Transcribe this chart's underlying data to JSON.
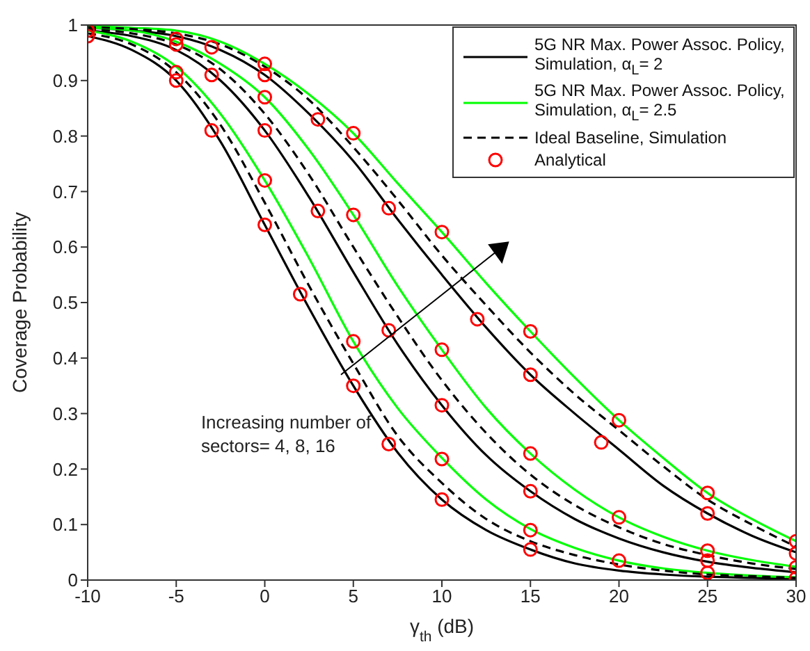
{
  "chart_data": {
    "type": "line",
    "xlabel": "γ$_{th}$ (dB)",
    "ylabel": "Coverage Probability",
    "x": [
      -10,
      -7.5,
      -5,
      -2.5,
      0,
      2.5,
      5,
      7.5,
      10,
      12.5,
      15,
      17.5,
      20,
      22.5,
      25,
      27.5,
      30
    ],
    "xlim": [
      -10,
      30
    ],
    "xticks": [
      -10,
      -5,
      0,
      5,
      10,
      15,
      20,
      25,
      30
    ],
    "ylim": [
      0,
      1
    ],
    "yticks": [
      0,
      0.1,
      0.2,
      0.3,
      0.4,
      0.5,
      0.6,
      0.7,
      0.8,
      0.9,
      1
    ],
    "grid": false,
    "legend": "top right",
    "marker": "none",
    "series": [
      {
        "name": "5G NR Max. Power Assoc. Policy, Simulation, α$_{L}$= 2",
        "color": "#000000",
        "line_style": "solid",
        "values": [
          0.98,
          0.955,
          0.9,
          0.79,
          0.64,
          0.49,
          0.35,
          0.23,
          0.145,
          0.09,
          0.055,
          0.03,
          0.017,
          0.01,
          0.006,
          0.004,
          0.002
        ]
      },
      {
        "color": "#000000",
        "line_style": "solid",
        "values": [
          0.99,
          0.98,
          0.955,
          0.9,
          0.81,
          0.69,
          0.555,
          0.425,
          0.315,
          0.225,
          0.16,
          0.11,
          0.075,
          0.05,
          0.033,
          0.022,
          0.014
        ]
      },
      {
        "color": "#000000",
        "line_style": "solid",
        "values": [
          0.995,
          0.99,
          0.98,
          0.955,
          0.91,
          0.84,
          0.755,
          0.65,
          0.55,
          0.455,
          0.37,
          0.3,
          0.235,
          0.17,
          0.12,
          0.08,
          0.05
        ]
      },
      {
        "name": "5G NR Max. Power Assoc. Policy, Simulation, α$_{L}$= 2.5",
        "color": "#00ff00",
        "line_style": "solid",
        "values": [
          0.99,
          0.97,
          0.925,
          0.84,
          0.72,
          0.58,
          0.43,
          0.31,
          0.22,
          0.145,
          0.092,
          0.058,
          0.035,
          0.021,
          0.013,
          0.008,
          0.005
        ]
      },
      {
        "color": "#00ff00",
        "line_style": "solid",
        "values": [
          0.995,
          0.99,
          0.97,
          0.93,
          0.87,
          0.775,
          0.658,
          0.53,
          0.415,
          0.31,
          0.228,
          0.163,
          0.113,
          0.078,
          0.053,
          0.036,
          0.024
        ]
      },
      {
        "color": "#00ff00",
        "line_style": "solid",
        "values": [
          0.998,
          0.995,
          0.99,
          0.97,
          0.93,
          0.875,
          0.805,
          0.715,
          0.627,
          0.535,
          0.448,
          0.365,
          0.288,
          0.22,
          0.157,
          0.11,
          0.07
        ]
      },
      {
        "name": "Ideal Baseline, Simulation",
        "color": "#000000",
        "line_style": "dashed",
        "values": [
          0.985,
          0.965,
          0.915,
          0.82,
          0.68,
          0.53,
          0.39,
          0.26,
          0.175,
          0.11,
          0.07,
          0.045,
          0.028,
          0.017,
          0.01,
          0.007,
          0.004
        ]
      },
      {
        "color": "#000000",
        "line_style": "dashed",
        "values": [
          0.992,
          0.985,
          0.965,
          0.92,
          0.84,
          0.73,
          0.6,
          0.475,
          0.36,
          0.265,
          0.19,
          0.135,
          0.095,
          0.065,
          0.045,
          0.03,
          0.02
        ]
      },
      {
        "color": "#000000",
        "line_style": "dashed",
        "values": [
          0.996,
          0.993,
          0.985,
          0.965,
          0.925,
          0.865,
          0.78,
          0.685,
          0.585,
          0.495,
          0.41,
          0.335,
          0.27,
          0.205,
          0.145,
          0.1,
          0.06
        ]
      },
      {
        "name": "Analytical",
        "type": "scatter",
        "marker": "circle",
        "color": "#ff0000",
        "x": [
          -10,
          -10,
          -5,
          -5,
          -5,
          -5,
          -3,
          -3,
          -3,
          0,
          0,
          0,
          0,
          0,
          0,
          2,
          3,
          3,
          5,
          5,
          5,
          5,
          7,
          7,
          7,
          10,
          10,
          10,
          10,
          10,
          12,
          15,
          15,
          15,
          15,
          15,
          15,
          19,
          20,
          20,
          20,
          25,
          25,
          25,
          25,
          25,
          30,
          30,
          30,
          30
        ],
        "values": [
          0.98,
          0.99,
          0.9,
          0.915,
          0.965,
          0.975,
          0.81,
          0.91,
          0.96,
          0.64,
          0.72,
          0.81,
          0.87,
          0.91,
          0.93,
          0.515,
          0.665,
          0.83,
          0.35,
          0.43,
          0.658,
          0.805,
          0.245,
          0.45,
          0.67,
          0.145,
          0.218,
          0.315,
          0.415,
          0.627,
          0.47,
          0.055,
          0.09,
          0.16,
          0.228,
          0.37,
          0.448,
          0.248,
          0.035,
          0.113,
          0.288,
          0.013,
          0.035,
          0.053,
          0.12,
          0.157,
          0.003,
          0.023,
          0.048,
          0.07
        ]
      }
    ],
    "annotations": [
      "Increasing number of sectors= 4, 8, 16"
    ]
  }
}
